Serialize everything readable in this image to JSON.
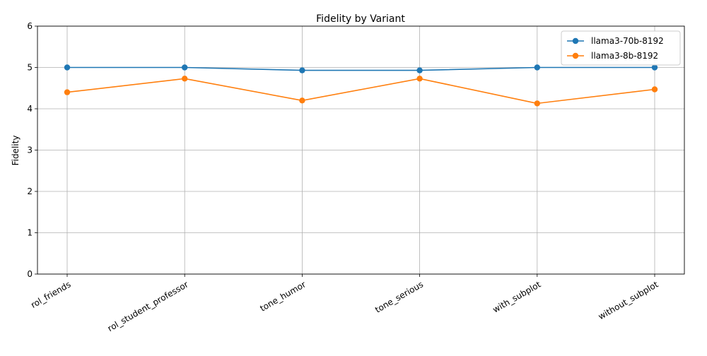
{
  "chart_data": {
    "type": "line",
    "title": "Fidelity by Variant",
    "xlabel": "",
    "ylabel": "Fidelity",
    "categories": [
      "rol_friends",
      "rol_student_professor",
      "tone_humor",
      "tone_serious",
      "with_subplot",
      "without_subplot"
    ],
    "ylim": [
      0,
      6
    ],
    "yticks": [
      0,
      1,
      2,
      3,
      4,
      5,
      6
    ],
    "grid": true,
    "legend_position": "top-right",
    "series": [
      {
        "name": "llama3-70b-8192",
        "color": "#1f77b4",
        "values": [
          5.0,
          5.0,
          4.93,
          4.93,
          5.0,
          5.0
        ]
      },
      {
        "name": "llama3-8b-8192",
        "color": "#ff7f0e",
        "values": [
          4.4,
          4.73,
          4.2,
          4.73,
          4.13,
          4.47
        ]
      }
    ]
  }
}
